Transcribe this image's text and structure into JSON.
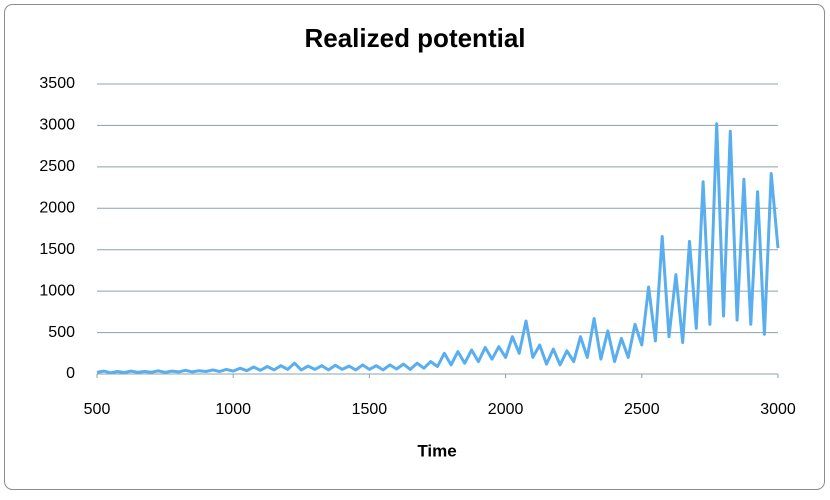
{
  "chart_data": {
    "type": "line",
    "title": "Realized potential",
    "x_label": "Time",
    "x": [
      500,
      525,
      550,
      575,
      600,
      625,
      650,
      675,
      700,
      725,
      750,
      775,
      800,
      825,
      850,
      875,
      900,
      925,
      950,
      975,
      1000,
      1025,
      1050,
      1075,
      1100,
      1125,
      1150,
      1175,
      1200,
      1225,
      1250,
      1275,
      1300,
      1325,
      1350,
      1375,
      1400,
      1425,
      1450,
      1475,
      1500,
      1525,
      1550,
      1575,
      1600,
      1625,
      1650,
      1675,
      1700,
      1725,
      1750,
      1775,
      1800,
      1825,
      1850,
      1875,
      1900,
      1925,
      1950,
      1975,
      2000,
      2025,
      2050,
      2075,
      2100,
      2125,
      2150,
      2175,
      2200,
      2225,
      2250,
      2275,
      2300,
      2325,
      2350,
      2375,
      2400,
      2425,
      2450,
      2475,
      2500,
      2525,
      2550,
      2575,
      2600,
      2625,
      2650,
      2675,
      2700,
      2725,
      2750,
      2775,
      2800,
      2825,
      2850,
      2875,
      2900,
      2925,
      2950,
      2975,
      3000
    ],
    "series": [
      {
        "color": "#59aeef",
        "values": [
          20,
          35,
          15,
          30,
          18,
          35,
          20,
          30,
          22,
          38,
          20,
          35,
          25,
          45,
          25,
          40,
          30,
          50,
          30,
          55,
          35,
          70,
          40,
          85,
          45,
          90,
          50,
          100,
          55,
          130,
          50,
          95,
          55,
          100,
          50,
          105,
          55,
          95,
          50,
          110,
          55,
          100,
          50,
          110,
          60,
          120,
          55,
          130,
          70,
          150,
          90,
          250,
          110,
          270,
          130,
          290,
          150,
          320,
          180,
          330,
          200,
          450,
          250,
          640,
          200,
          350,
          120,
          300,
          110,
          280,
          150,
          450,
          200,
          670,
          180,
          520,
          150,
          430,
          200,
          600,
          350,
          1050,
          400,
          1660,
          450,
          1200,
          380,
          1600,
          550,
          2320,
          600,
          3020,
          700,
          2930,
          650,
          2350,
          600,
          2200,
          480,
          2420,
          1520
        ]
      }
    ],
    "xlim": [
      500,
      3000
    ],
    "xticks": [
      500,
      1000,
      1500,
      2000,
      2500,
      3000
    ],
    "ylim": [
      0,
      3500
    ],
    "yticks": [
      0,
      500,
      1000,
      1500,
      2000,
      2500,
      3000,
      3500
    ],
    "grid": true
  }
}
